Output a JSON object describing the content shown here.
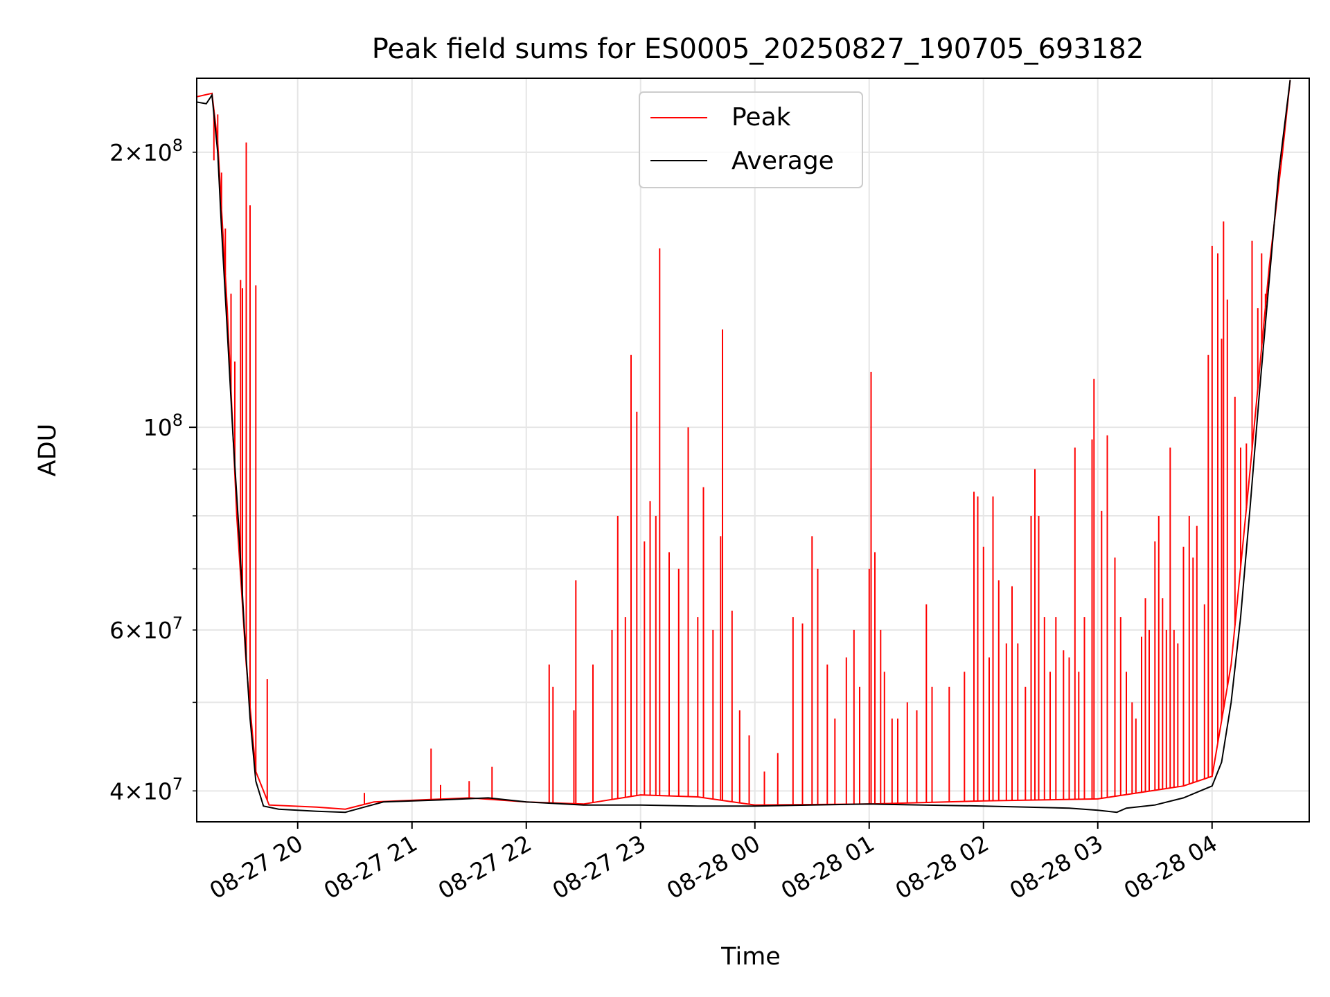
{
  "chart_data": {
    "type": "line",
    "title": "Peak field sums for ES0005_20250827_190705_693182",
    "xlabel": "Time",
    "ylabel": "ADU",
    "x_scale": "time",
    "y_scale": "log",
    "xlim": [
      "2025-08-27 19:07",
      "2025-08-28 04:51"
    ],
    "ylim": [
      37000000,
      241000000
    ],
    "grid": true,
    "legend": "upper center",
    "x_ticks": [
      "2025-08-27 20:00",
      "2025-08-27 21:00",
      "2025-08-27 22:00",
      "2025-08-27 23:00",
      "2025-08-28 00:00",
      "2025-08-28 01:00",
      "2025-08-28 02:00",
      "2025-08-28 03:00",
      "2025-08-28 04:00"
    ],
    "x_tick_labels": [
      "08-27 20",
      "08-27 21",
      "08-27 22",
      "08-27 23",
      "08-28 00",
      "08-28 01",
      "08-28 02",
      "08-28 03",
      "08-28 04"
    ],
    "y_ticks_major": [
      100000000
    ],
    "y_ticks_major_labels": [
      {
        "base": "10",
        "exp": "8"
      }
    ],
    "y_ticks_minor": [
      40000000,
      50000000,
      60000000,
      70000000,
      80000000,
      90000000,
      200000000
    ],
    "y_ticks_minor_labels": [
      {
        "value": 40000000,
        "mant": "4",
        "exp": "7"
      },
      {
        "value": 60000000,
        "mant": "6",
        "exp": "7"
      },
      {
        "value": 200000000,
        "mant": "2",
        "exp": "8"
      }
    ],
    "series": [
      {
        "name": "Peak",
        "color": "#ff0000",
        "baseline": [
          [
            "2025-08-27 19:07",
            230000000
          ],
          [
            "2025-08-27 19:15",
            232000000
          ],
          [
            "2025-08-27 19:18",
            205000000
          ],
          [
            "2025-08-27 19:23",
            135000000
          ],
          [
            "2025-08-27 19:28",
            80000000
          ],
          [
            "2025-08-27 19:33",
            55000000
          ],
          [
            "2025-08-27 19:38",
            42000000
          ],
          [
            "2025-08-27 19:45",
            38600000
          ],
          [
            "2025-08-27 20:10",
            38400000
          ],
          [
            "2025-08-27 20:25",
            38200000
          ],
          [
            "2025-08-27 20:40",
            38900000
          ],
          [
            "2025-08-27 21:30",
            39300000
          ],
          [
            "2025-08-27 22:00",
            38900000
          ],
          [
            "2025-08-27 22:30",
            38700000
          ],
          [
            "2025-08-27 23:00",
            39600000
          ],
          [
            "2025-08-27 23:30",
            39400000
          ],
          [
            "2025-08-28 00:00",
            38600000
          ],
          [
            "2025-08-28 01:00",
            38700000
          ],
          [
            "2025-08-28 02:00",
            39000000
          ],
          [
            "2025-08-28 03:00",
            39200000
          ],
          [
            "2025-08-28 03:45",
            40500000
          ],
          [
            "2025-08-28 04:00",
            41500000
          ],
          [
            "2025-08-28 04:10",
            55000000
          ],
          [
            "2025-08-28 04:20",
            90000000
          ],
          [
            "2025-08-28 04:30",
            150000000
          ],
          [
            "2025-08-28 04:37",
            200000000
          ],
          [
            "2025-08-28 04:41",
            240000000
          ]
        ],
        "spikes": [
          [
            "2025-08-27 19:16",
            196000000
          ],
          [
            "2025-08-27 19:18",
            220000000
          ],
          [
            "2025-08-27 19:20",
            190000000
          ],
          [
            "2025-08-27 19:22",
            165000000
          ],
          [
            "2025-08-27 19:25",
            140000000
          ],
          [
            "2025-08-27 19:27",
            118000000
          ],
          [
            "2025-08-27 19:30",
            145000000
          ],
          [
            "2025-08-27 19:31",
            142000000
          ],
          [
            "2025-08-27 19:33",
            205000000
          ],
          [
            "2025-08-27 19:35",
            175000000
          ],
          [
            "2025-08-27 19:38",
            143000000
          ],
          [
            "2025-08-27 19:44",
            53000000
          ],
          [
            "2025-08-27 20:35",
            39800000
          ],
          [
            "2025-08-27 21:10",
            44500000
          ],
          [
            "2025-08-27 21:15",
            40600000
          ],
          [
            "2025-08-27 21:30",
            41000000
          ],
          [
            "2025-08-27 21:42",
            42500000
          ],
          [
            "2025-08-27 22:12",
            55000000
          ],
          [
            "2025-08-27 22:14",
            52000000
          ],
          [
            "2025-08-27 22:25",
            49000000
          ],
          [
            "2025-08-27 22:26",
            68000000
          ],
          [
            "2025-08-27 22:35",
            55000000
          ],
          [
            "2025-08-27 22:45",
            60000000
          ],
          [
            "2025-08-27 22:48",
            80000000
          ],
          [
            "2025-08-27 22:52",
            62000000
          ],
          [
            "2025-08-27 22:55",
            120000000
          ],
          [
            "2025-08-27 22:58",
            104000000
          ],
          [
            "2025-08-27 23:02",
            75000000
          ],
          [
            "2025-08-27 23:05",
            83000000
          ],
          [
            "2025-08-27 23:08",
            80000000
          ],
          [
            "2025-08-27 23:10",
            157000000
          ],
          [
            "2025-08-27 23:15",
            73000000
          ],
          [
            "2025-08-27 23:20",
            70000000
          ],
          [
            "2025-08-27 23:25",
            100000000
          ],
          [
            "2025-08-27 23:30",
            62000000
          ],
          [
            "2025-08-27 23:33",
            86000000
          ],
          [
            "2025-08-27 23:38",
            60000000
          ],
          [
            "2025-08-27 23:42",
            76000000
          ],
          [
            "2025-08-27 23:43",
            128000000
          ],
          [
            "2025-08-27 23:48",
            63000000
          ],
          [
            "2025-08-27 23:52",
            49000000
          ],
          [
            "2025-08-27 23:57",
            46000000
          ],
          [
            "2025-08-28 00:05",
            42000000
          ],
          [
            "2025-08-28 00:12",
            44000000
          ],
          [
            "2025-08-28 00:20",
            62000000
          ],
          [
            "2025-08-28 00:25",
            61000000
          ],
          [
            "2025-08-28 00:30",
            76000000
          ],
          [
            "2025-08-28 00:33",
            70000000
          ],
          [
            "2025-08-28 00:38",
            55000000
          ],
          [
            "2025-08-28 00:42",
            48000000
          ],
          [
            "2025-08-28 00:48",
            56000000
          ],
          [
            "2025-08-28 00:52",
            60000000
          ],
          [
            "2025-08-28 00:55",
            52000000
          ],
          [
            "2025-08-28 01:00",
            70000000
          ],
          [
            "2025-08-28 01:01",
            115000000
          ],
          [
            "2025-08-28 01:03",
            73000000
          ],
          [
            "2025-08-28 01:06",
            60000000
          ],
          [
            "2025-08-28 01:08",
            54000000
          ],
          [
            "2025-08-28 01:12",
            48000000
          ],
          [
            "2025-08-28 01:15",
            48000000
          ],
          [
            "2025-08-28 01:20",
            50000000
          ],
          [
            "2025-08-28 01:25",
            49000000
          ],
          [
            "2025-08-28 01:30",
            64000000
          ],
          [
            "2025-08-28 01:33",
            52000000
          ],
          [
            "2025-08-28 01:42",
            52000000
          ],
          [
            "2025-08-28 01:50",
            54000000
          ],
          [
            "2025-08-28 01:55",
            85000000
          ],
          [
            "2025-08-28 01:57",
            84000000
          ],
          [
            "2025-08-28 02:00",
            74000000
          ],
          [
            "2025-08-28 02:03",
            56000000
          ],
          [
            "2025-08-28 02:05",
            84000000
          ],
          [
            "2025-08-28 02:08",
            68000000
          ],
          [
            "2025-08-28 02:12",
            58000000
          ],
          [
            "2025-08-28 02:15",
            67000000
          ],
          [
            "2025-08-28 02:18",
            58000000
          ],
          [
            "2025-08-28 02:22",
            52000000
          ],
          [
            "2025-08-28 02:25",
            80000000
          ],
          [
            "2025-08-28 02:27",
            90000000
          ],
          [
            "2025-08-28 02:29",
            80000000
          ],
          [
            "2025-08-28 02:32",
            62000000
          ],
          [
            "2025-08-28 02:35",
            54000000
          ],
          [
            "2025-08-28 02:38",
            62000000
          ],
          [
            "2025-08-28 02:42",
            57000000
          ],
          [
            "2025-08-28 02:45",
            56000000
          ],
          [
            "2025-08-28 02:48",
            95000000
          ],
          [
            "2025-08-28 02:50",
            54000000
          ],
          [
            "2025-08-28 02:53",
            62000000
          ],
          [
            "2025-08-28 02:57",
            97000000
          ],
          [
            "2025-08-28 02:58",
            113000000
          ],
          [
            "2025-08-28 03:02",
            81000000
          ],
          [
            "2025-08-28 03:05",
            98000000
          ],
          [
            "2025-08-28 03:09",
            72000000
          ],
          [
            "2025-08-28 03:12",
            62000000
          ],
          [
            "2025-08-28 03:15",
            54000000
          ],
          [
            "2025-08-28 03:18",
            50000000
          ],
          [
            "2025-08-28 03:20",
            48000000
          ],
          [
            "2025-08-28 03:23",
            59000000
          ],
          [
            "2025-08-28 03:25",
            65000000
          ],
          [
            "2025-08-28 03:27",
            60000000
          ],
          [
            "2025-08-28 03:30",
            75000000
          ],
          [
            "2025-08-28 03:32",
            80000000
          ],
          [
            "2025-08-28 03:34",
            65000000
          ],
          [
            "2025-08-28 03:36",
            60000000
          ],
          [
            "2025-08-28 03:38",
            95000000
          ],
          [
            "2025-08-28 03:40",
            60000000
          ],
          [
            "2025-08-28 03:42",
            58000000
          ],
          [
            "2025-08-28 03:45",
            74000000
          ],
          [
            "2025-08-28 03:48",
            80000000
          ],
          [
            "2025-08-28 03:50",
            72000000
          ],
          [
            "2025-08-28 03:52",
            78000000
          ],
          [
            "2025-08-28 03:56",
            64000000
          ],
          [
            "2025-08-28 03:58",
            120000000
          ],
          [
            "2025-08-28 04:00",
            158000000
          ],
          [
            "2025-08-28 04:03",
            155000000
          ],
          [
            "2025-08-28 04:05",
            125000000
          ],
          [
            "2025-08-28 04:06",
            168000000
          ],
          [
            "2025-08-28 04:08",
            138000000
          ],
          [
            "2025-08-28 04:12",
            108000000
          ],
          [
            "2025-08-28 04:15",
            95000000
          ],
          [
            "2025-08-28 04:18",
            96000000
          ],
          [
            "2025-08-28 04:21",
            160000000
          ],
          [
            "2025-08-28 04:24",
            135000000
          ],
          [
            "2025-08-28 04:26",
            155000000
          ],
          [
            "2025-08-28 04:28",
            140000000
          ]
        ]
      },
      {
        "name": "Average",
        "color": "#000000",
        "values": [
          [
            "2025-08-27 19:07",
            227000000
          ],
          [
            "2025-08-27 19:12",
            226000000
          ],
          [
            "2025-08-27 19:15",
            231000000
          ],
          [
            "2025-08-27 19:18",
            200000000
          ],
          [
            "2025-08-27 19:20",
            165000000
          ],
          [
            "2025-08-27 19:23",
            128000000
          ],
          [
            "2025-08-27 19:26",
            98000000
          ],
          [
            "2025-08-27 19:29",
            78000000
          ],
          [
            "2025-08-27 19:32",
            60000000
          ],
          [
            "2025-08-27 19:35",
            48000000
          ],
          [
            "2025-08-27 19:38",
            41000000
          ],
          [
            "2025-08-27 19:42",
            38500000
          ],
          [
            "2025-08-27 19:50",
            38200000
          ],
          [
            "2025-08-27 20:10",
            38000000
          ],
          [
            "2025-08-27 20:25",
            37900000
          ],
          [
            "2025-08-27 20:35",
            38400000
          ],
          [
            "2025-08-27 20:45",
            38900000
          ],
          [
            "2025-08-27 21:15",
            39100000
          ],
          [
            "2025-08-27 21:40",
            39300000
          ],
          [
            "2025-08-27 22:00",
            38900000
          ],
          [
            "2025-08-27 22:30",
            38600000
          ],
          [
            "2025-08-27 23:00",
            38600000
          ],
          [
            "2025-08-27 23:30",
            38500000
          ],
          [
            "2025-08-28 00:00",
            38500000
          ],
          [
            "2025-08-28 01:00",
            38700000
          ],
          [
            "2025-08-28 02:00",
            38500000
          ],
          [
            "2025-08-28 02:45",
            38300000
          ],
          [
            "2025-08-28 03:00",
            38100000
          ],
          [
            "2025-08-28 03:10",
            37900000
          ],
          [
            "2025-08-28 03:15",
            38300000
          ],
          [
            "2025-08-28 03:30",
            38600000
          ],
          [
            "2025-08-28 03:45",
            39300000
          ],
          [
            "2025-08-28 04:00",
            40500000
          ],
          [
            "2025-08-28 04:05",
            43000000
          ],
          [
            "2025-08-28 04:10",
            50000000
          ],
          [
            "2025-08-28 04:15",
            62000000
          ],
          [
            "2025-08-28 04:20",
            82000000
          ],
          [
            "2025-08-28 04:25",
            110000000
          ],
          [
            "2025-08-28 04:30",
            145000000
          ],
          [
            "2025-08-28 04:35",
            190000000
          ],
          [
            "2025-08-28 04:41",
            240000000
          ]
        ]
      }
    ]
  }
}
